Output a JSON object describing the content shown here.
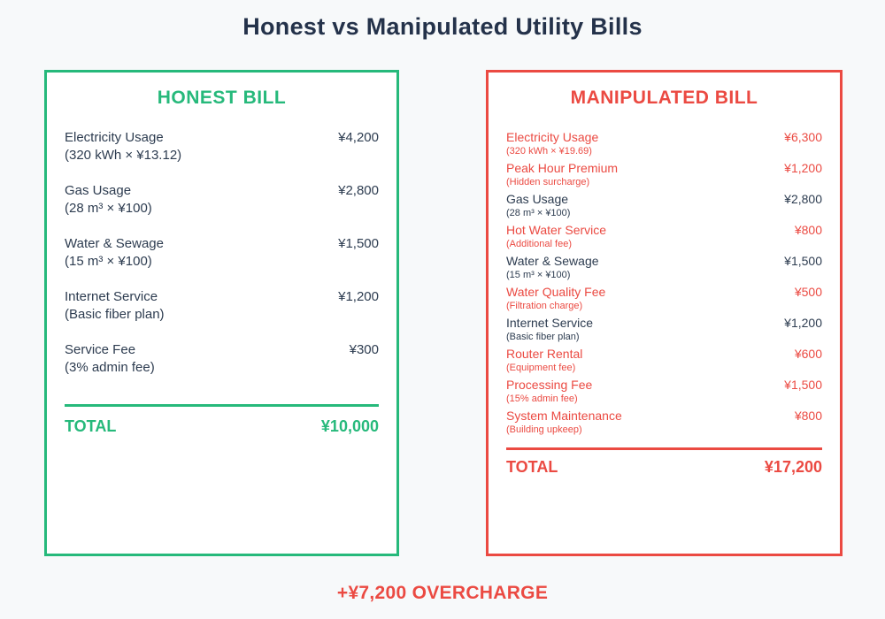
{
  "page": {
    "title": "Honest vs Manipulated Utility Bills",
    "footer": "+¥7,200 OVERCHARGE"
  },
  "colors": {
    "background": "#f7f9fa",
    "dark_text": "#2d3c50",
    "green_accent": "#26b97b",
    "red_accent": "#eb4a42",
    "card_background": "#ffffff"
  },
  "honest_bill": {
    "title": "HONEST BILL",
    "items": [
      {
        "name": "Electricity Usage",
        "detail": "(320 kWh × ¥13.12)",
        "amount": "¥4,200",
        "flagged": false
      },
      {
        "name": "Gas Usage",
        "detail": "(28 m³ × ¥100)",
        "amount": "¥2,800",
        "flagged": false
      },
      {
        "name": "Water & Sewage",
        "detail": "(15 m³ × ¥100)",
        "amount": "¥1,500",
        "flagged": false
      },
      {
        "name": "Internet Service",
        "detail": "(Basic fiber plan)",
        "amount": "¥1,200",
        "flagged": false
      },
      {
        "name": "Service Fee",
        "detail": "(3% admin fee)",
        "amount": "¥300",
        "flagged": false
      }
    ],
    "total_label": "TOTAL",
    "total_amount": "¥10,000"
  },
  "manipulated_bill": {
    "title": "MANIPULATED BILL",
    "items": [
      {
        "name": "Electricity Usage",
        "detail": "(320 kWh × ¥19.69)",
        "amount": "¥6,300",
        "flagged": true
      },
      {
        "name": "Peak Hour Premium",
        "detail": "(Hidden surcharge)",
        "amount": "¥1,200",
        "flagged": true
      },
      {
        "name": "Gas Usage",
        "detail": "(28 m³ × ¥100)",
        "amount": "¥2,800",
        "flagged": false
      },
      {
        "name": "Hot Water Service",
        "detail": "(Additional fee)",
        "amount": "¥800",
        "flagged": true
      },
      {
        "name": "Water & Sewage",
        "detail": "(15 m³ × ¥100)",
        "amount": "¥1,500",
        "flagged": false
      },
      {
        "name": "Water Quality Fee",
        "detail": "(Filtration charge)",
        "amount": "¥500",
        "flagged": true
      },
      {
        "name": "Internet Service",
        "detail": "(Basic fiber plan)",
        "amount": "¥1,200",
        "flagged": false
      },
      {
        "name": "Router Rental",
        "detail": "(Equipment fee)",
        "amount": "¥600",
        "flagged": true
      },
      {
        "name": "Processing Fee",
        "detail": "(15% admin fee)",
        "amount": "¥1,500",
        "flagged": true
      },
      {
        "name": "System Maintenance",
        "detail": "(Building upkeep)",
        "amount": "¥800",
        "flagged": true
      }
    ],
    "total_label": "TOTAL",
    "total_amount": "¥17,200"
  }
}
